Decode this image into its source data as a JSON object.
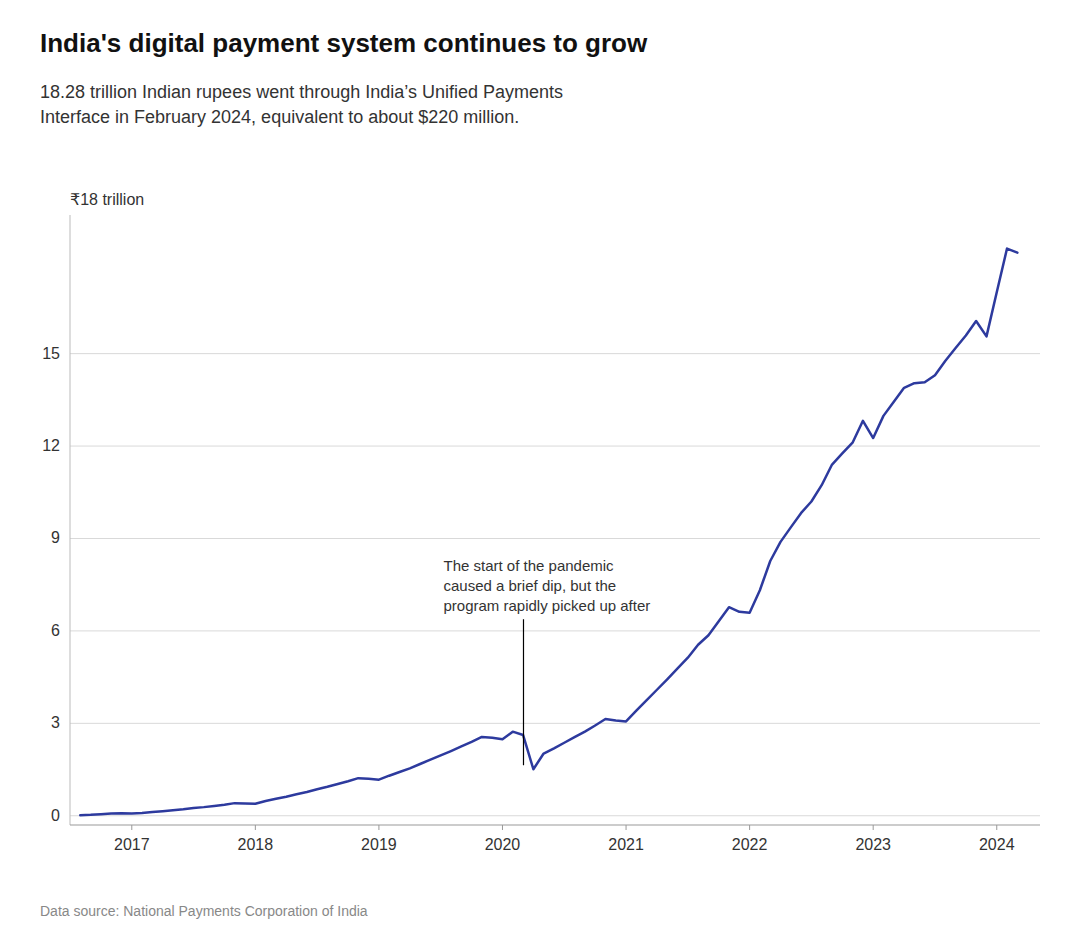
{
  "chart_data": {
    "type": "line",
    "title": "India's digital payment system continues to grow",
    "subtitle": "18.28 trillion Indian rupees went through India’s Unified Payments\nInterface in February 2024, equivalent to about $220 million.",
    "source": "Data source: National Payments Corporation of India",
    "ylabel": "₹18 trillion",
    "annotation": {
      "text": "The start of the pandemic\ncaused a brief dip, but the\nprogram rapidly picked up after",
      "x": 2020.17,
      "y": 1.51
    },
    "color": "#2d3a9e",
    "grid": true,
    "xlim": [
      2016.5,
      2024.35
    ],
    "ylim": [
      -0.3,
      19.5
    ],
    "xticks": [
      2017,
      2018,
      2019,
      2020,
      2021,
      2022,
      2023,
      2024
    ],
    "yticks": [
      0,
      3,
      6,
      9,
      12,
      15
    ],
    "x": [
      2016.583,
      2016.667,
      2016.75,
      2016.833,
      2016.917,
      2017.0,
      2017.083,
      2017.167,
      2017.25,
      2017.333,
      2017.417,
      2017.5,
      2017.583,
      2017.667,
      2017.75,
      2017.833,
      2017.917,
      2018.0,
      2018.083,
      2018.167,
      2018.25,
      2018.333,
      2018.417,
      2018.5,
      2018.583,
      2018.667,
      2018.75,
      2018.833,
      2018.917,
      2019.0,
      2019.083,
      2019.167,
      2019.25,
      2019.333,
      2019.417,
      2019.5,
      2019.583,
      2019.667,
      2019.75,
      2019.833,
      2019.917,
      2020.0,
      2020.083,
      2020.167,
      2020.25,
      2020.333,
      2020.417,
      2020.5,
      2020.583,
      2020.667,
      2020.75,
      2020.833,
      2020.917,
      2021.0,
      2021.083,
      2021.167,
      2021.25,
      2021.333,
      2021.417,
      2021.5,
      2021.583,
      2021.667,
      2021.75,
      2021.833,
      2021.917,
      2022.0,
      2022.083,
      2022.167,
      2022.25,
      2022.333,
      2022.417,
      2022.5,
      2022.583,
      2022.667,
      2022.75,
      2022.833,
      2022.917,
      2023.0,
      2023.083,
      2023.167,
      2023.25,
      2023.333,
      2023.417,
      2023.5,
      2023.583,
      2023.667,
      2023.75,
      2023.833,
      2023.917,
      2024.0,
      2024.083,
      2024.167
    ],
    "values": [
      0.02,
      0.03,
      0.05,
      0.07,
      0.08,
      0.07,
      0.09,
      0.12,
      0.15,
      0.18,
      0.21,
      0.25,
      0.28,
      0.32,
      0.36,
      0.41,
      0.4,
      0.39,
      0.48,
      0.55,
      0.62,
      0.7,
      0.77,
      0.86,
      0.94,
      1.03,
      1.12,
      1.22,
      1.2,
      1.17,
      1.3,
      1.42,
      1.54,
      1.68,
      1.82,
      1.96,
      2.1,
      2.25,
      2.4,
      2.56,
      2.53,
      2.48,
      2.73,
      2.62,
      1.51,
      2.02,
      2.19,
      2.37,
      2.55,
      2.73,
      2.93,
      3.14,
      3.09,
      3.06,
      3.41,
      3.75,
      4.09,
      4.43,
      4.78,
      5.13,
      5.55,
      5.86,
      6.31,
      6.77,
      6.62,
      6.59,
      7.32,
      8.27,
      8.89,
      9.36,
      9.83,
      10.2,
      10.73,
      11.4,
      11.76,
      12.11,
      12.82,
      12.26,
      12.98,
      13.44,
      13.89,
      14.04,
      14.07,
      14.3,
      14.76,
      15.18,
      15.59,
      16.06,
      15.56,
      16.99,
      18.41,
      18.28
    ]
  }
}
